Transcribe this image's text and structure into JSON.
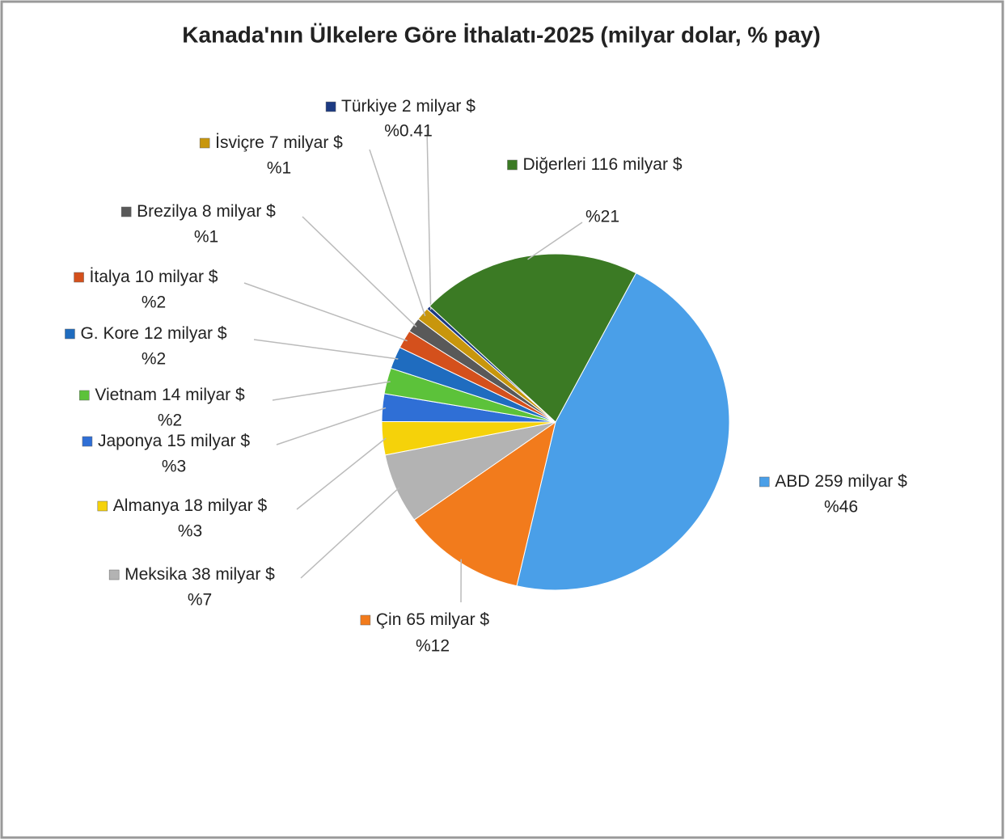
{
  "chart_data": {
    "type": "pie",
    "title": "Kanada'nın Ülkelere Göre İthalatı-2025 (milyar dolar, % pay)",
    "categories": [
      "ABD",
      "Çin",
      "Meksika",
      "Almanya",
      "Japonya",
      "Vietnam",
      "G. Kore",
      "İtalya",
      "Brezilya",
      "İsviçre",
      "Türkiye",
      "Diğerleri"
    ],
    "values": [
      259,
      65,
      38,
      18,
      15,
      14,
      12,
      10,
      8,
      7,
      2,
      116
    ],
    "value_labels": [
      "259 milyar $",
      "65 milyar $",
      "38 milyar $",
      "18 milyar $",
      "15 milyar $",
      "14 milyar $",
      "12 milyar $",
      "10 milyar $",
      "8 milyar $",
      "7 milyar $",
      "2 milyar $",
      "116 milyar $"
    ],
    "percents": [
      46,
      12,
      7,
      3,
      3,
      2,
      2,
      2,
      1,
      1,
      0.41,
      21
    ],
    "percent_labels": [
      "%46",
      "%12",
      "%7",
      "%3",
      "%3",
      "%2",
      "%2",
      "%2",
      "%1",
      "%1",
      "%0.41",
      "%21"
    ],
    "colors": [
      "#4a9fe8",
      "#f27b1c",
      "#b3b3b3",
      "#f5d20a",
      "#2f6fd6",
      "#5cc23a",
      "#1f6cbf",
      "#d4501c",
      "#595959",
      "#c8960c",
      "#1c3a82",
      "#3b7a24"
    ]
  }
}
